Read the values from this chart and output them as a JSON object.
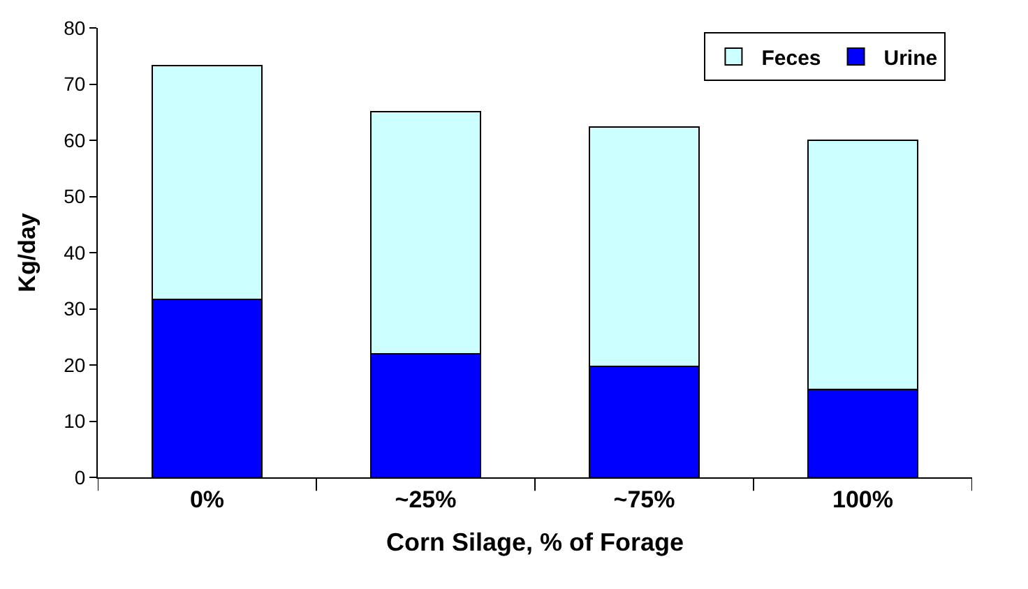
{
  "chart_data": {
    "type": "bar",
    "stacked": true,
    "xlabel": "Corn Silage, % of Forage",
    "ylabel": "Kg/day",
    "categories": [
      "0%",
      "~25%",
      "~75%",
      "100%"
    ],
    "series": [
      {
        "name": "Urine",
        "color": "#0000ff",
        "values": [
          31.7,
          22.0,
          19.7,
          15.6
        ]
      },
      {
        "name": "Feces",
        "color": "#ccffff",
        "values": [
          41.6,
          43.1,
          42.7,
          44.4
        ]
      }
    ],
    "ylim": [
      0,
      80
    ],
    "yticks": [
      0,
      10,
      20,
      30,
      40,
      50,
      60,
      70,
      80
    ],
    "legend": "top right"
  }
}
